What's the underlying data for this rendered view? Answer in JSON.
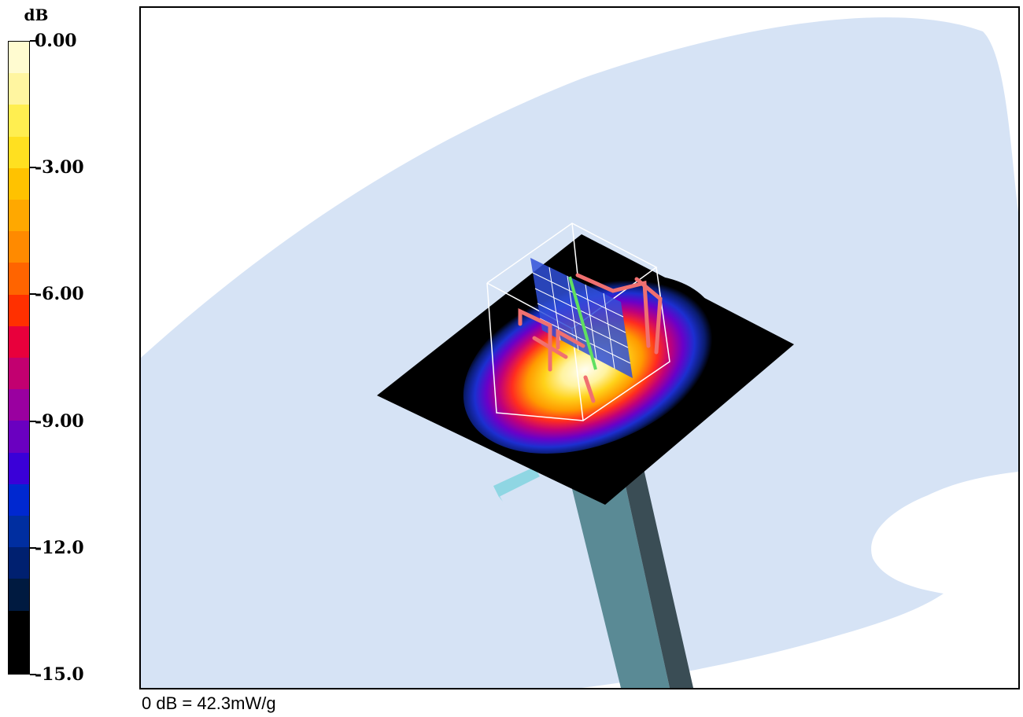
{
  "legend": {
    "unit": "dB",
    "ticks": [
      {
        "value": 0.0,
        "label": "0.00"
      },
      {
        "value": -3.0,
        "label": "-3.00"
      },
      {
        "value": -6.0,
        "label": "-6.00"
      },
      {
        "value": -9.0,
        "label": "-9.00"
      },
      {
        "value": -12.0,
        "label": "-12.0"
      },
      {
        "value": -15.0,
        "label": "-15.0"
      }
    ],
    "range": [
      -15.0,
      0.0
    ],
    "bands": [
      "#fffbd0",
      "#fff5a0",
      "#ffee50",
      "#ffe020",
      "#ffc200",
      "#ffa800",
      "#ff8a00",
      "#ff6400",
      "#ff3000",
      "#e8003c",
      "#c20070",
      "#9a00a0",
      "#6a00c0",
      "#3a00d8",
      "#0028d0",
      "#002ea0",
      "#002070",
      "#001a40",
      "#000000",
      "#000000"
    ]
  },
  "reference": {
    "text": "0 dB = 42.3mW/g"
  },
  "scene": {
    "colors": {
      "phantom": "#d6e3f5",
      "stand_light": "#5a8a95",
      "stand_dark": "#3a4d55",
      "probe": "#8fd6e3",
      "plane": "#000000",
      "grid_frame": "#ffffff",
      "antenna": "#f07070",
      "antenna_feed": "#60e060",
      "field_plate": "#3050d8"
    }
  }
}
